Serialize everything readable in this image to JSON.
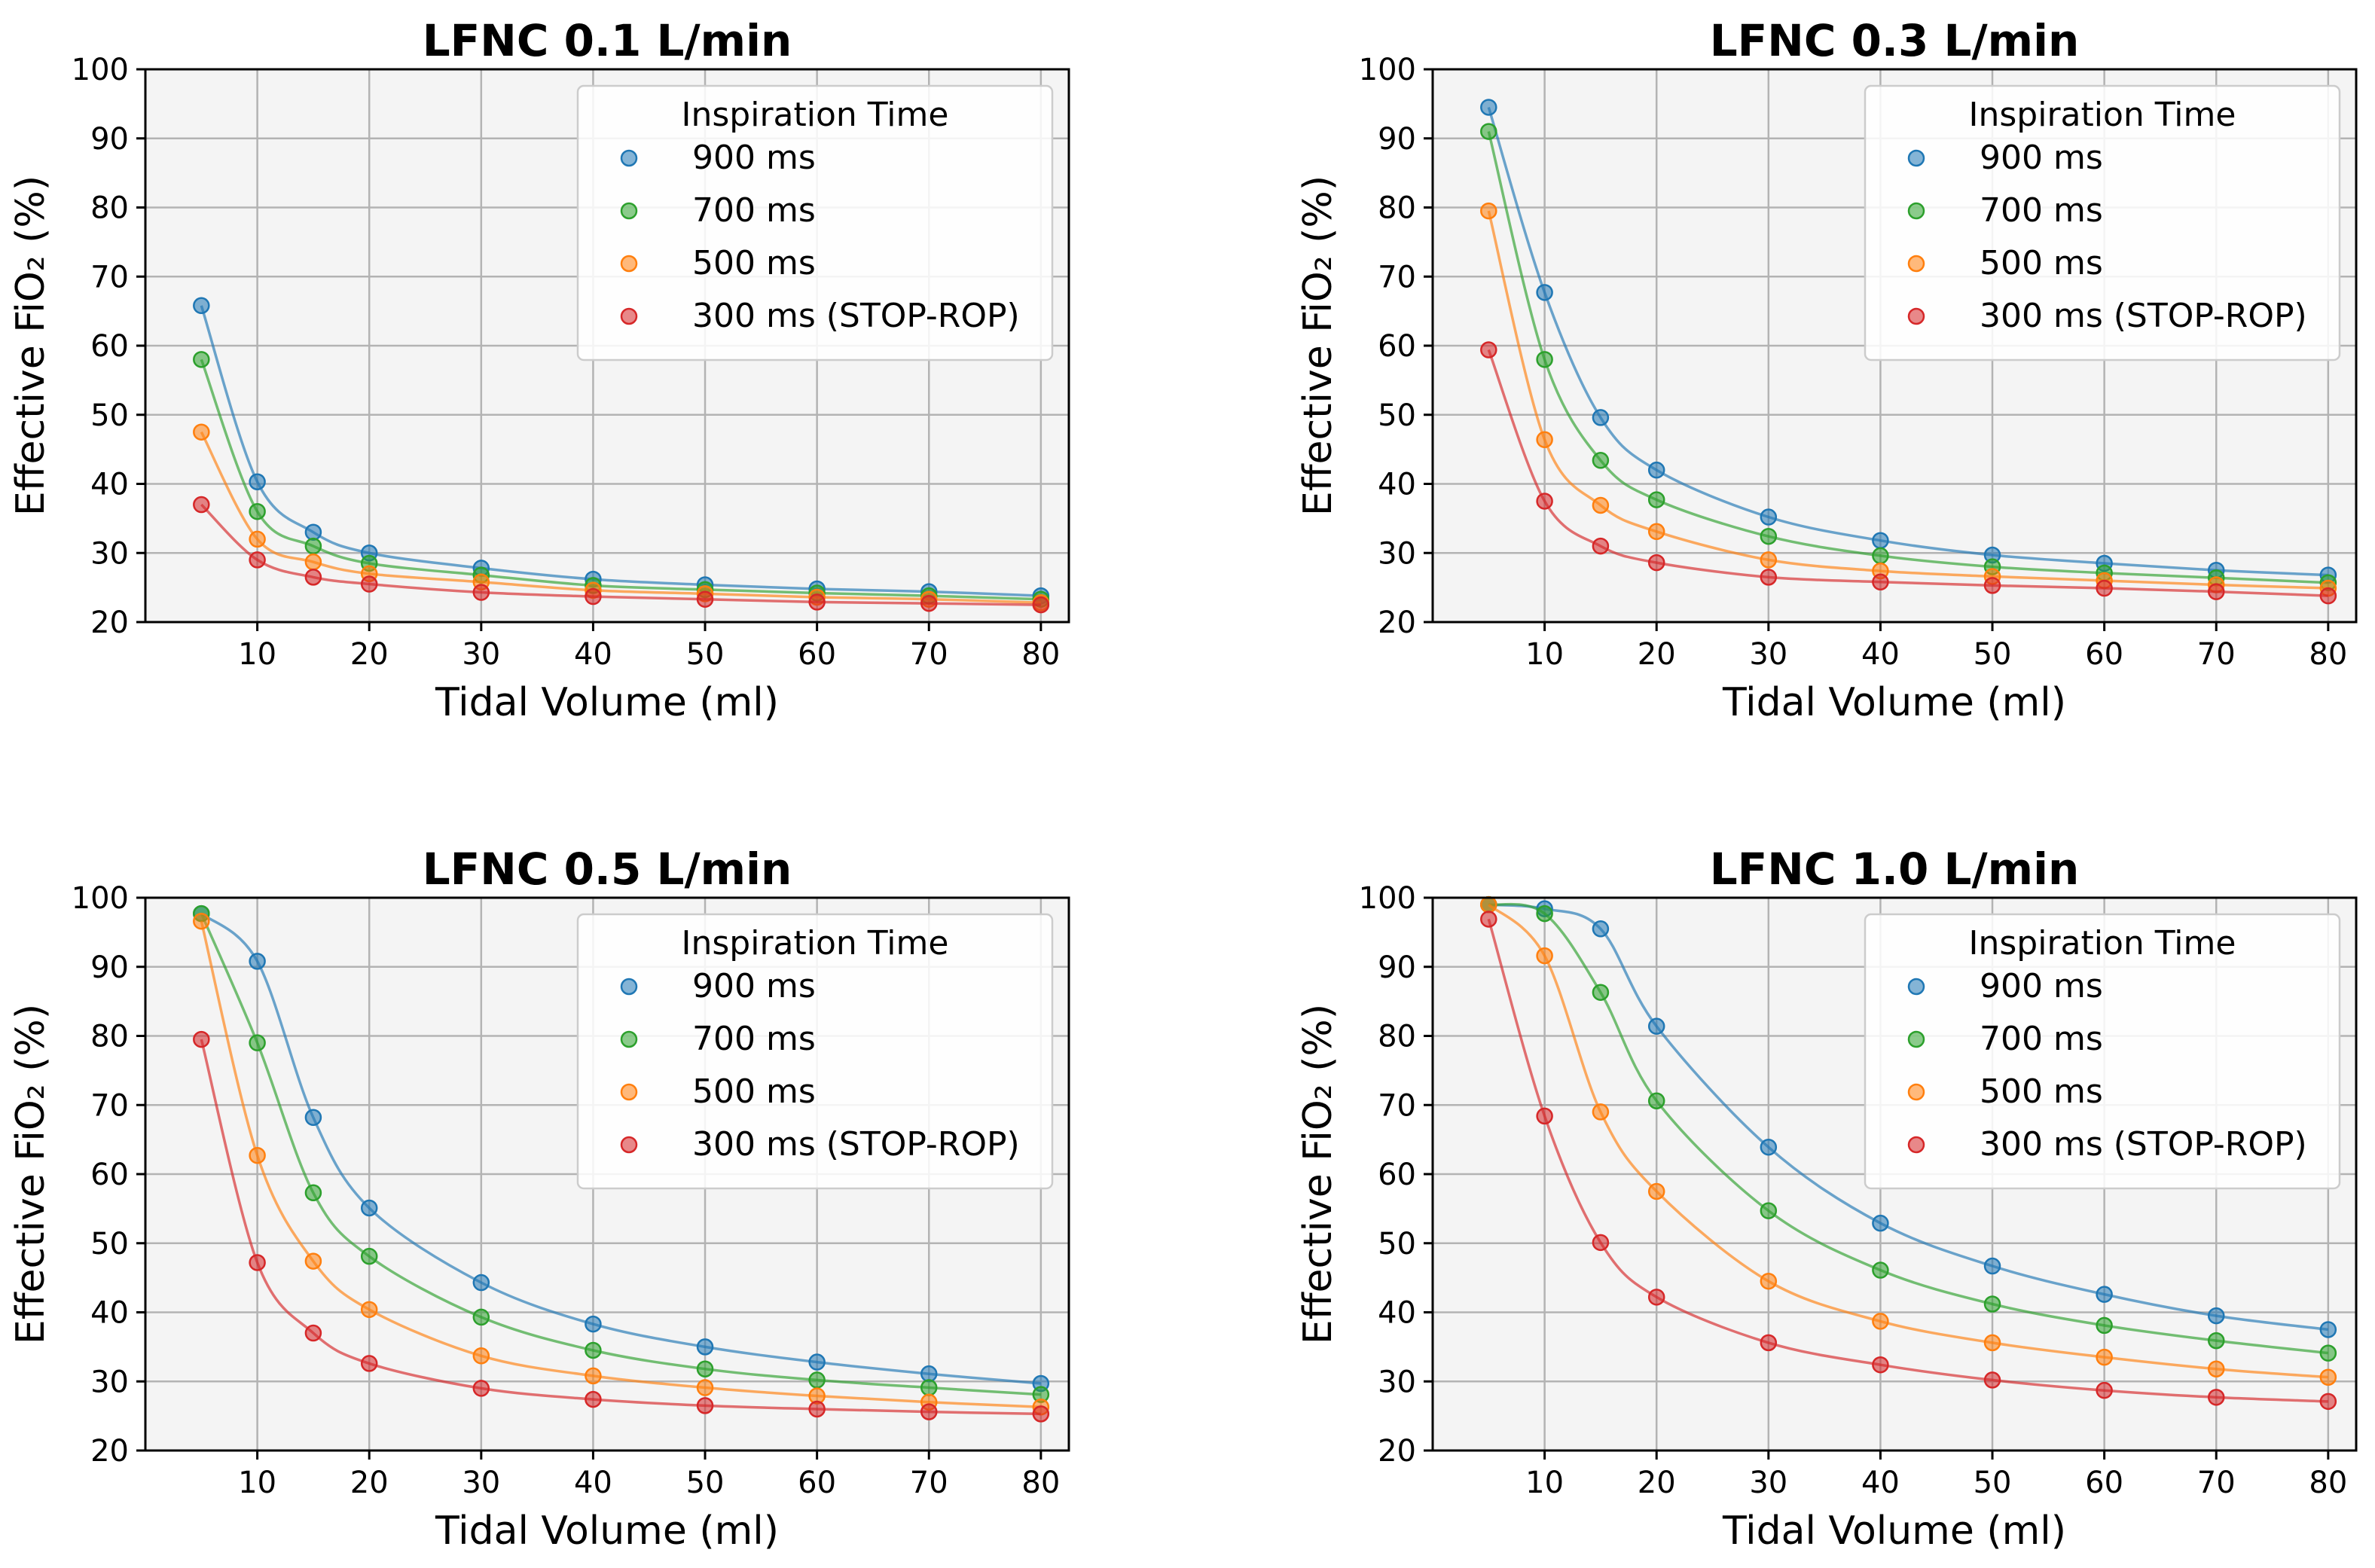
{
  "colors": {
    "900": "#1f77b4",
    "700": "#2ca02c",
    "500": "#ff7f0e",
    "300": "#d62728",
    "plot_bg": "#f4f4f4",
    "grid": "#b3b3b3"
  },
  "chart_data": [
    {
      "type": "line",
      "title": "LFNC 0.1 L/min",
      "xlabel": "Tidal Volume (ml)",
      "ylabel": "Effective FiO₂ (%)",
      "xlim": [
        0,
        82.5
      ],
      "ylim": [
        20,
        100
      ],
      "xticks": [
        10,
        20,
        30,
        40,
        50,
        60,
        70,
        80
      ],
      "yticks": [
        20,
        30,
        40,
        50,
        60,
        70,
        80,
        90,
        100
      ],
      "grid": true,
      "legend_title": "Inspiration Time",
      "legend_position": "upper-right",
      "x": [
        5,
        10,
        15,
        20,
        30,
        40,
        50,
        60,
        70,
        80
      ],
      "series": [
        {
          "name": "900 ms",
          "color_key": "900",
          "values": [
            65.8,
            40.3,
            33.0,
            30.0,
            27.8,
            26.2,
            25.4,
            24.8,
            24.4,
            23.8
          ]
        },
        {
          "name": "700 ms",
          "color_key": "700",
          "values": [
            58.0,
            36.0,
            31.0,
            28.5,
            26.8,
            25.3,
            24.7,
            24.2,
            23.8,
            23.3
          ]
        },
        {
          "name": "500 ms",
          "color_key": "500",
          "values": [
            47.5,
            32.0,
            28.7,
            27.0,
            25.8,
            24.6,
            24.1,
            23.6,
            23.3,
            22.8
          ]
        },
        {
          "name": "300 ms (STOP-ROP)",
          "color_key": "300",
          "values": [
            37.0,
            29.0,
            26.5,
            25.5,
            24.3,
            23.7,
            23.3,
            22.9,
            22.7,
            22.5
          ]
        }
      ]
    },
    {
      "type": "line",
      "title": "LFNC 0.3 L/min",
      "xlabel": "Tidal Volume (ml)",
      "ylabel": "Effective FiO₂ (%)",
      "xlim": [
        0,
        82.5
      ],
      "ylim": [
        20,
        100
      ],
      "xticks": [
        10,
        20,
        30,
        40,
        50,
        60,
        70,
        80
      ],
      "yticks": [
        20,
        30,
        40,
        50,
        60,
        70,
        80,
        90,
        100
      ],
      "grid": true,
      "legend_title": "Inspiration Time",
      "legend_position": "upper-right",
      "x": [
        5,
        10,
        15,
        20,
        30,
        40,
        50,
        60,
        70,
        80
      ],
      "series": [
        {
          "name": "900 ms",
          "color_key": "900",
          "values": [
            94.5,
            67.7,
            49.6,
            42.0,
            35.2,
            31.8,
            29.7,
            28.5,
            27.5,
            26.8
          ]
        },
        {
          "name": "700 ms",
          "color_key": "700",
          "values": [
            91.0,
            58.0,
            43.4,
            37.7,
            32.4,
            29.6,
            28.0,
            27.1,
            26.4,
            25.7
          ]
        },
        {
          "name": "500 ms",
          "color_key": "500",
          "values": [
            79.5,
            46.4,
            36.9,
            33.1,
            29.0,
            27.4,
            26.6,
            26.0,
            25.4,
            24.9
          ]
        },
        {
          "name": "300 ms (STOP-ROP)",
          "color_key": "300",
          "values": [
            59.4,
            37.5,
            31.0,
            28.6,
            26.5,
            25.8,
            25.3,
            24.9,
            24.4,
            23.8
          ]
        }
      ]
    },
    {
      "type": "line",
      "title": "LFNC 0.5 L/min",
      "xlabel": "Tidal Volume (ml)",
      "ylabel": "Effective FiO₂ (%)",
      "xlim": [
        0,
        82.5
      ],
      "ylim": [
        20,
        100
      ],
      "xticks": [
        10,
        20,
        30,
        40,
        50,
        60,
        70,
        80
      ],
      "yticks": [
        20,
        30,
        40,
        50,
        60,
        70,
        80,
        90,
        100
      ],
      "grid": true,
      "legend_title": "Inspiration Time",
      "legend_position": "upper-right",
      "x": [
        5,
        10,
        15,
        20,
        30,
        40,
        50,
        60,
        70,
        80
      ],
      "series": [
        {
          "name": "900 ms",
          "color_key": "900",
          "values": [
            97.7,
            90.8,
            68.2,
            55.1,
            44.3,
            38.3,
            35.0,
            32.8,
            31.1,
            29.7
          ]
        },
        {
          "name": "700 ms",
          "color_key": "700",
          "values": [
            97.7,
            79.0,
            57.3,
            48.1,
            39.3,
            34.5,
            31.8,
            30.2,
            29.1,
            28.1
          ]
        },
        {
          "name": "500 ms",
          "color_key": "500",
          "values": [
            96.6,
            62.7,
            47.4,
            40.4,
            33.7,
            30.8,
            29.1,
            27.9,
            27.0,
            26.3
          ]
        },
        {
          "name": "300 ms (STOP-ROP)",
          "color_key": "300",
          "values": [
            79.5,
            47.2,
            37.0,
            32.6,
            29.0,
            27.4,
            26.5,
            26.0,
            25.6,
            25.3
          ]
        }
      ]
    },
    {
      "type": "line",
      "title": "LFNC 1.0 L/min",
      "xlabel": "Tidal Volume (ml)",
      "ylabel": "Effective FiO₂ (%)",
      "xlim": [
        0,
        82.5
      ],
      "ylim": [
        20,
        100
      ],
      "xticks": [
        10,
        20,
        30,
        40,
        50,
        60,
        70,
        80
      ],
      "yticks": [
        20,
        30,
        40,
        50,
        60,
        70,
        80,
        90,
        100
      ],
      "grid": true,
      "legend_title": "Inspiration Time",
      "legend_position": "upper-right",
      "x": [
        5,
        10,
        15,
        20,
        30,
        40,
        50,
        60,
        70,
        80
      ],
      "series": [
        {
          "name": "900 ms",
          "color_key": "900",
          "values": [
            99.0,
            98.4,
            95.5,
            81.4,
            63.9,
            52.9,
            46.7,
            42.6,
            39.5,
            37.5
          ]
        },
        {
          "name": "700 ms",
          "color_key": "700",
          "values": [
            99.0,
            97.7,
            86.3,
            70.6,
            54.7,
            46.1,
            41.2,
            38.1,
            35.9,
            34.1
          ]
        },
        {
          "name": "500 ms",
          "color_key": "500",
          "values": [
            99.0,
            91.6,
            69.0,
            57.5,
            44.5,
            38.7,
            35.6,
            33.5,
            31.8,
            30.6
          ]
        },
        {
          "name": "300 ms (STOP-ROP)",
          "color_key": "300",
          "values": [
            96.9,
            68.4,
            50.1,
            42.2,
            35.6,
            32.4,
            30.2,
            28.7,
            27.7,
            27.1
          ]
        }
      ]
    }
  ]
}
